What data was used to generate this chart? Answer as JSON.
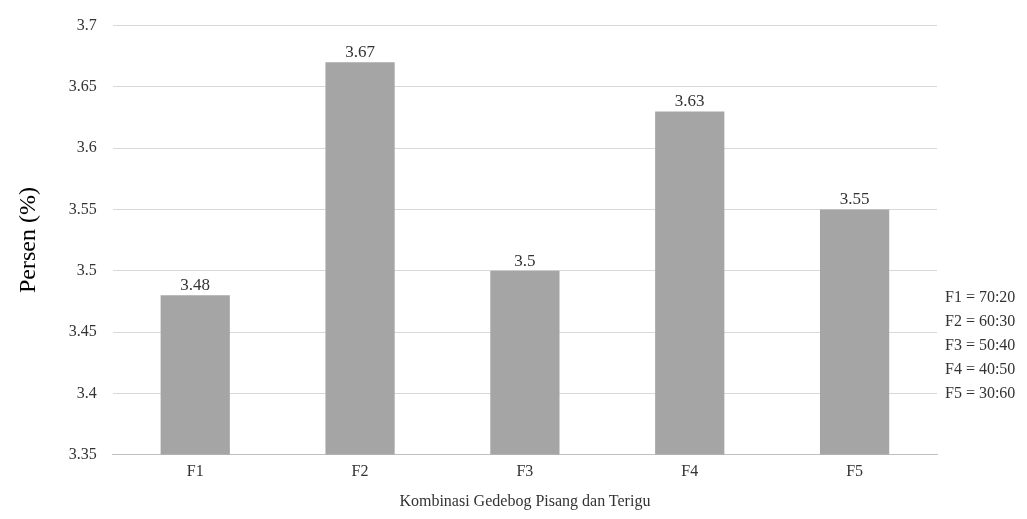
{
  "chart_data": {
    "type": "bar",
    "xlabel": "Kombinasi Gedebog Pisang dan Terigu",
    "ylabel": "Persen (%)",
    "categories": [
      "F1",
      "F2",
      "F3",
      "F4",
      "F5"
    ],
    "values": [
      3.48,
      3.67,
      3.5,
      3.63,
      3.55
    ],
    "color": "#a5a5a5",
    "ylim": [
      3.35,
      3.7
    ],
    "yticks": [
      3.35,
      3.4,
      3.45,
      3.5,
      3.55,
      3.6,
      3.65,
      3.7
    ],
    "grid": "y",
    "data_labels": true,
    "annotations": [
      "F1 = 70:20",
      "F2 = 60:30",
      "F3 = 50:40",
      "F4 = 40:50",
      "F5 = 30:60"
    ]
  }
}
